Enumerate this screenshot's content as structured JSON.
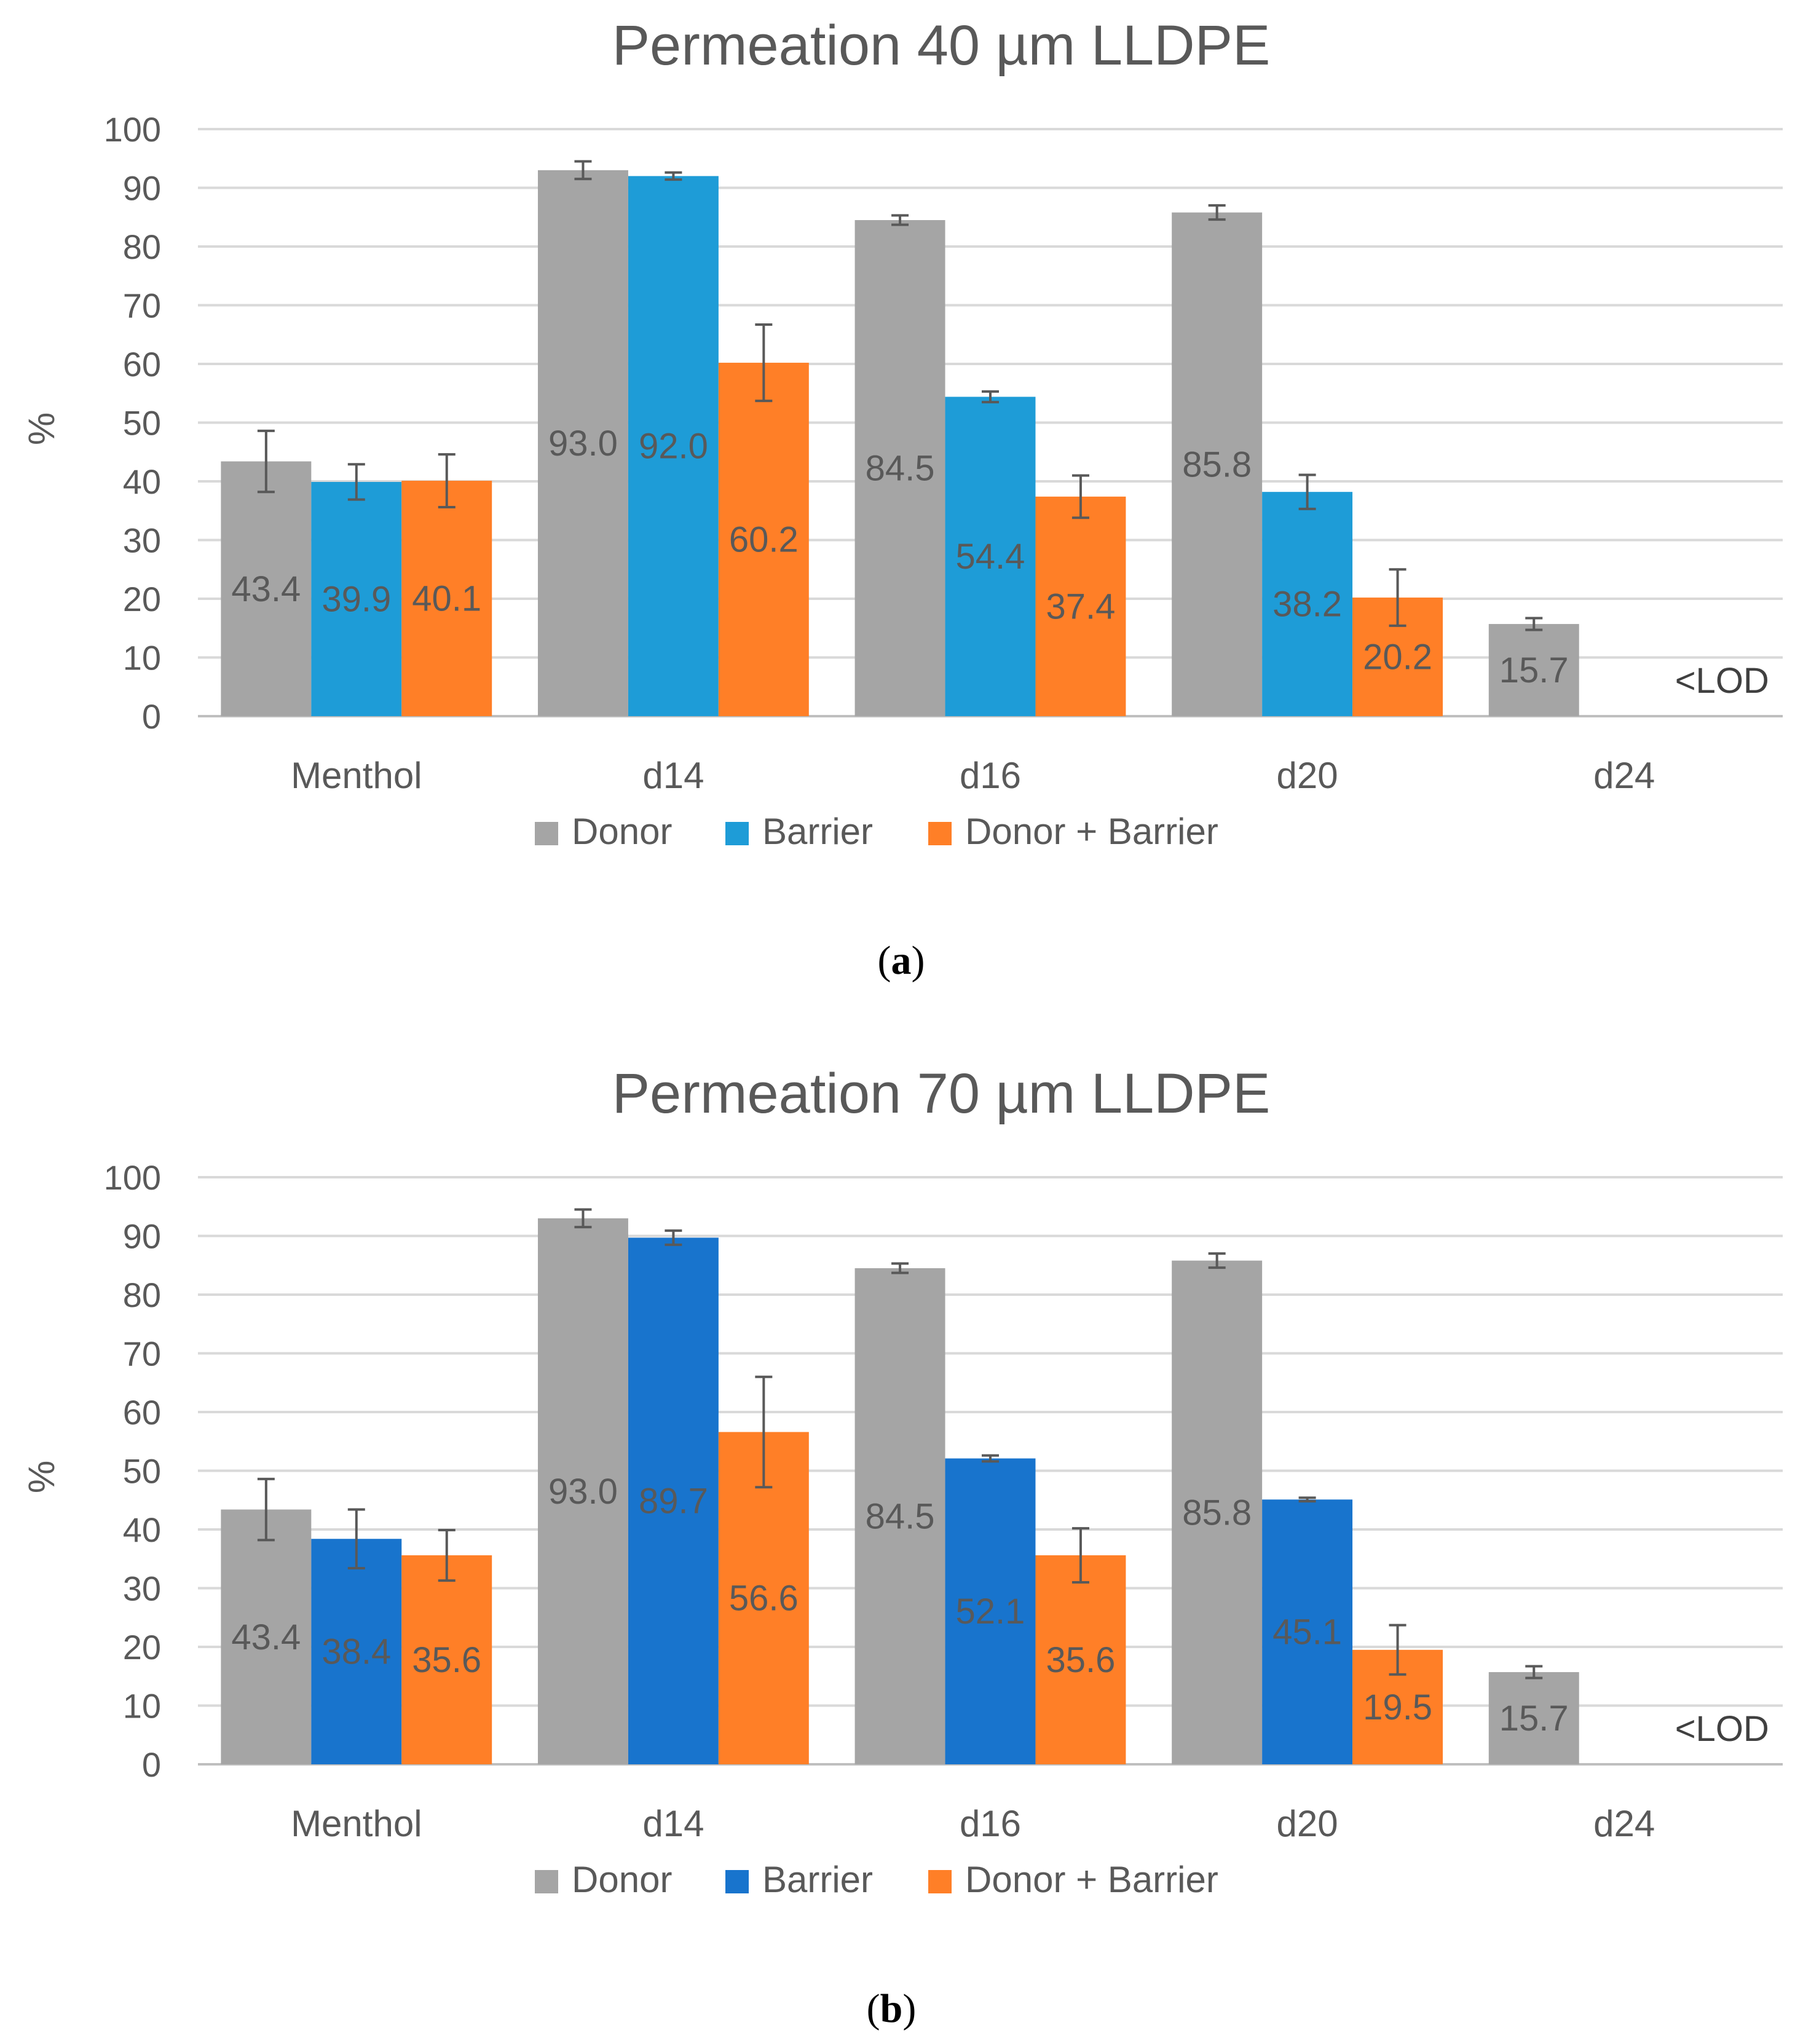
{
  "chart_data": [
    {
      "type": "bar",
      "panel": "(a)",
      "title": "Permeation 40 µm LLDPE",
      "ylabel": "%",
      "xlabel": "",
      "ylim": [
        0,
        100
      ],
      "yticks": [
        0,
        10,
        20,
        30,
        40,
        50,
        60,
        70,
        80,
        90,
        100
      ],
      "grid": true,
      "legend_position": "bottom",
      "categories": [
        "Menthol",
        "d14",
        "d16",
        "d20",
        "d24"
      ],
      "series": [
        {
          "name": "Donor",
          "color": "#A5A5A5",
          "values": [
            43.4,
            93.0,
            84.5,
            85.8,
            15.7
          ],
          "errors": [
            5.2,
            1.5,
            0.8,
            1.2,
            1.0
          ],
          "labels": [
            "43.4",
            "93.0",
            "84.5",
            "85.8",
            "15.7"
          ]
        },
        {
          "name": "Barrier",
          "color": "#1E9CD7",
          "values": [
            39.9,
            92.0,
            54.4,
            38.2,
            null
          ],
          "errors": [
            3.0,
            0.6,
            0.9,
            2.9,
            null
          ],
          "labels": [
            "39.9",
            "92.0",
            "54.4",
            "38.2",
            ""
          ]
        },
        {
          "name": "Donor + Barrier",
          "color": "#FF7F27",
          "values": [
            40.1,
            60.2,
            37.4,
            20.2,
            null
          ],
          "errors": [
            4.5,
            6.5,
            3.6,
            4.8,
            null
          ],
          "labels": [
            "40.1",
            "60.2",
            "37.4",
            "20.2",
            ""
          ]
        }
      ],
      "annotations": [
        "<LOD"
      ]
    },
    {
      "type": "bar",
      "panel": "(b)",
      "title": "Permeation 70 µm LLDPE",
      "ylabel": "%",
      "xlabel": "",
      "ylim": [
        0,
        100
      ],
      "yticks": [
        0,
        10,
        20,
        30,
        40,
        50,
        60,
        70,
        80,
        90,
        100
      ],
      "grid": true,
      "legend_position": "bottom",
      "categories": [
        "Menthol",
        "d14",
        "d16",
        "d20",
        "d24"
      ],
      "series": [
        {
          "name": "Donor",
          "color": "#A5A5A5",
          "values": [
            43.4,
            93.0,
            84.5,
            85.8,
            15.7
          ],
          "errors": [
            5.2,
            1.5,
            0.8,
            1.2,
            1.0
          ],
          "labels": [
            "43.4",
            "93.0",
            "84.5",
            "85.8",
            "15.7"
          ]
        },
        {
          "name": "Barrier",
          "color": "#1874CD",
          "values": [
            38.4,
            89.7,
            52.1,
            45.1,
            null
          ],
          "errors": [
            5.0,
            1.2,
            0.5,
            0.3,
            null
          ],
          "labels": [
            "38.4",
            "89.7",
            "52.1",
            "45.1",
            ""
          ]
        },
        {
          "name": "Donor + Barrier",
          "color": "#FF7F27",
          "values": [
            35.6,
            56.6,
            35.6,
            19.5,
            null
          ],
          "errors": [
            4.3,
            9.4,
            4.6,
            4.2,
            null
          ],
          "labels": [
            "35.6",
            "56.6",
            "35.6",
            "19.5",
            ""
          ]
        }
      ],
      "annotations": [
        "<LOD"
      ]
    }
  ],
  "captions": [
    "a",
    "b"
  ]
}
